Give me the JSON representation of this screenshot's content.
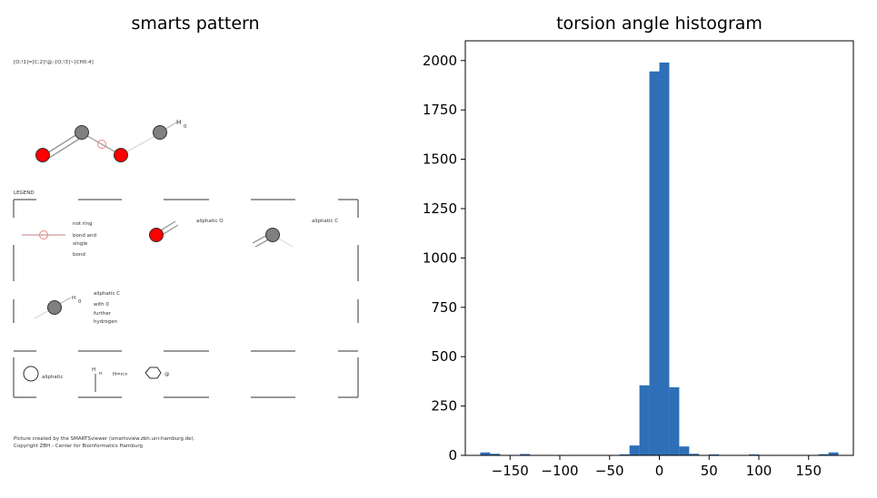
{
  "left_panel": {
    "title": "smarts pattern",
    "smarts": "[O;!1]=[C;2]!@;-[O;!3]~[CH0:4]",
    "legend_heading": "LEGEND",
    "legend": {
      "ring_bond": [
        "not ring",
        "bond and",
        "single",
        "bond"
      ],
      "aliphatic_o": "aliphatic O",
      "aliphatic_c": "aliphatic C",
      "aliphatic_c_h": [
        "aliphatic C",
        "with 0",
        "further",
        "hydrogen"
      ],
      "aliphatic_symbol": "aliphatic",
      "h_count_subscript": "n",
      "h_eq": "H=n>",
      "at_symbol": "@"
    },
    "h_label": "H",
    "h_subscript": "0",
    "footer": [
      "Picture created by the SMARTSviewer (smartsview.zbh.uni-hamburg.de).",
      "Copyright ZBH - Center for Bioinformatics Hamburg"
    ],
    "colors": {
      "oxygen": "#ff0000",
      "carbon": "#808080"
    }
  },
  "chart_data": {
    "type": "bar",
    "title": "torsion angle histogram",
    "xlabel": "",
    "ylabel": "",
    "xlim": [
      -195,
      195
    ],
    "ylim": [
      0,
      2100
    ],
    "xticks": [
      -150,
      -100,
      -50,
      0,
      50,
      100,
      150
    ],
    "yticks": [
      0,
      250,
      500,
      750,
      1000,
      1250,
      1500,
      1750,
      2000
    ],
    "bin_width": 10,
    "bins": [
      {
        "x0": -180,
        "value": 15
      },
      {
        "x0": -170,
        "value": 8
      },
      {
        "x0": -140,
        "value": 7
      },
      {
        "x0": -40,
        "value": 5
      },
      {
        "x0": -30,
        "value": 50
      },
      {
        "x0": -20,
        "value": 355
      },
      {
        "x0": -10,
        "value": 1945
      },
      {
        "x0": 0,
        "value": 1990
      },
      {
        "x0": 10,
        "value": 345
      },
      {
        "x0": 20,
        "value": 45
      },
      {
        "x0": 30,
        "value": 8
      },
      {
        "x0": 50,
        "value": 5
      },
      {
        "x0": 90,
        "value": 5
      },
      {
        "x0": 160,
        "value": 6
      },
      {
        "x0": 170,
        "value": 15
      }
    ],
    "bar_color": "#2e6fb8",
    "grid": false
  }
}
